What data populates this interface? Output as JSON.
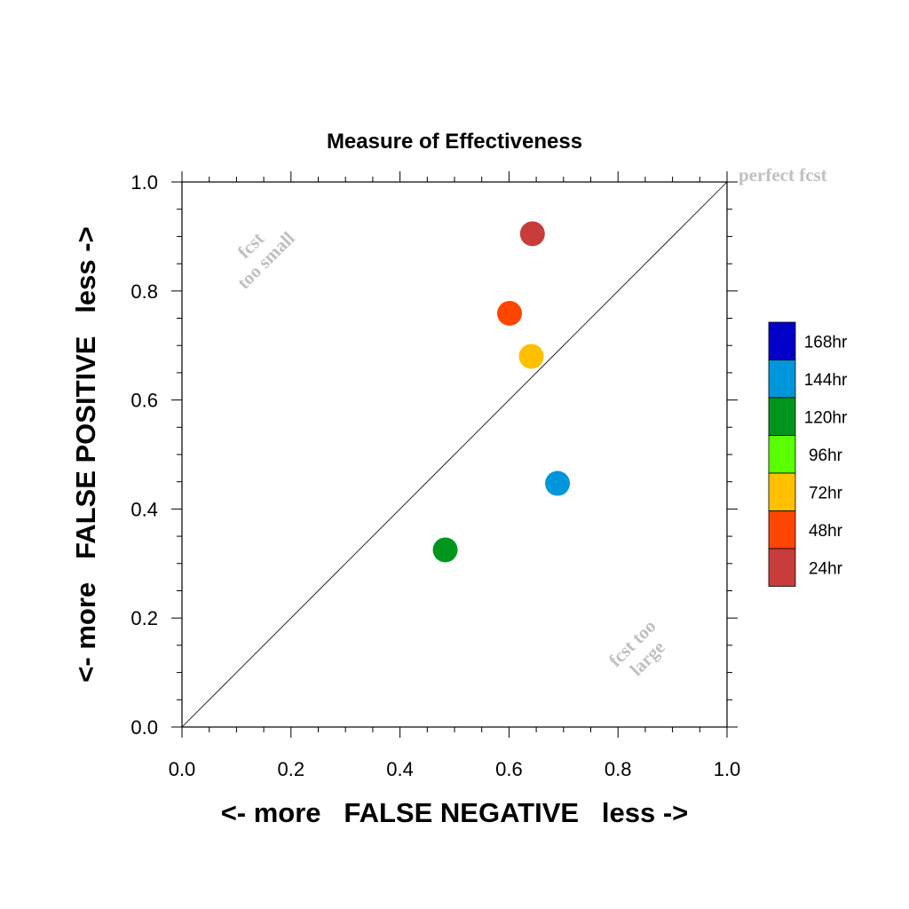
{
  "chart_data": {
    "type": "scatter",
    "title": "Measure of Effectiveness",
    "xlabel": "<- more   FALSE NEGATIVE   less ->",
    "ylabel": "<- more   FALSE POSITIVE   less ->",
    "xlim": [
      0.0,
      1.0
    ],
    "ylim": [
      0.0,
      1.0
    ],
    "x_ticks": [
      "0.0",
      "0.2",
      "0.4",
      "0.6",
      "0.8",
      "1.0"
    ],
    "y_ticks": [
      "0.0",
      "0.2",
      "0.4",
      "0.6",
      "0.8",
      "1.0"
    ],
    "grid": false,
    "diagonal_label": "perfect fcst",
    "annotations": [
      {
        "lines": [
          "fcst",
          "too small"
        ],
        "x": 0.14,
        "y": 0.87,
        "angle": -45
      },
      {
        "lines": [
          "fcst too",
          "large"
        ],
        "x": 0.84,
        "y": 0.14,
        "angle": -45
      }
    ],
    "legend": {
      "placement": "right",
      "entries": [
        {
          "label": "168hr",
          "color": "#0000c8"
        },
        {
          "label": "144hr",
          "color": "#0096dc"
        },
        {
          "label": "120hr",
          "color": "#00961e"
        },
        {
          "label": "96hr",
          "color": "#5aff00"
        },
        {
          "label": "72hr",
          "color": "#ffc000"
        },
        {
          "label": "48hr",
          "color": "#ff4600"
        },
        {
          "label": "24hr",
          "color": "#c83c3c"
        }
      ]
    },
    "series": [
      {
        "label": "24hr",
        "x": 0.643,
        "y": 0.905,
        "color": "#c83c3c"
      },
      {
        "label": "48hr",
        "x": 0.601,
        "y": 0.759,
        "color": "#ff4600"
      },
      {
        "label": "72hr",
        "x": 0.641,
        "y": 0.68,
        "color": "#ffc000"
      },
      {
        "label": "120hr",
        "x": 0.483,
        "y": 0.325,
        "color": "#00961e"
      },
      {
        "label": "144hr",
        "x": 0.689,
        "y": 0.447,
        "color": "#0096dc"
      }
    ]
  }
}
